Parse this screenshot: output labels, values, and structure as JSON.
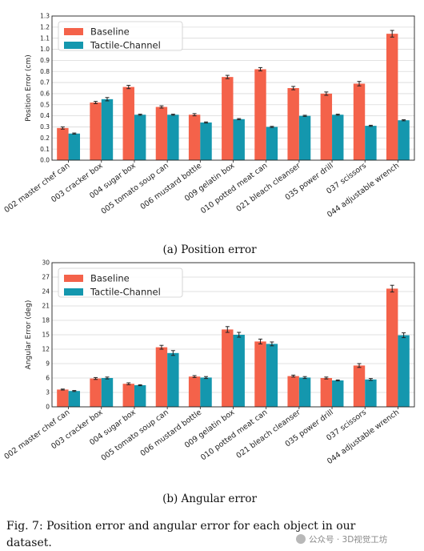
{
  "chart_data": [
    {
      "type": "bar",
      "caption": "(a) Position error",
      "ylabel": "Position Error (cm)",
      "ylim": [
        0,
        1.3
      ],
      "yticks": [
        "0.0",
        "0.1",
        "0.2",
        "0.3",
        "0.4",
        "0.5",
        "0.6",
        "0.7",
        "0.8",
        "0.9",
        "1.0",
        "1.1",
        "1.2",
        "1.3"
      ],
      "grid": true,
      "legend": "top-left",
      "categories": [
        "002 master chef can",
        "003 cracker box",
        "004 sugar box",
        "005 tomato soup can",
        "006 mustard bottle",
        "009 gelatin box",
        "010 potted meat can",
        "021 bleach cleanser",
        "035 power drill",
        "037 scissors",
        "044 adjustable wrench"
      ],
      "series": [
        {
          "name": "Baseline",
          "color": "#f4624a",
          "values": [
            0.29,
            0.52,
            0.66,
            0.48,
            0.41,
            0.75,
            0.82,
            0.65,
            0.6,
            0.69,
            1.14
          ],
          "errors": [
            0.01,
            0.01,
            0.015,
            0.01,
            0.01,
            0.015,
            0.015,
            0.015,
            0.015,
            0.02,
            0.03
          ]
        },
        {
          "name": "Tactile-Channel",
          "color": "#1497ae",
          "values": [
            0.24,
            0.55,
            0.41,
            0.41,
            0.34,
            0.37,
            0.3,
            0.4,
            0.41,
            0.31,
            0.36
          ],
          "errors": [
            0.005,
            0.015,
            0.005,
            0.005,
            0.005,
            0.005,
            0.005,
            0.005,
            0.005,
            0.005,
            0.005
          ]
        }
      ]
    },
    {
      "type": "bar",
      "caption": "(b) Angular error",
      "ylabel": "Angular Error (deg)",
      "ylim": [
        0,
        30
      ],
      "yticks": [
        "0",
        "3",
        "6",
        "9",
        "12",
        "15",
        "18",
        "21",
        "24",
        "27",
        "30"
      ],
      "grid": true,
      "legend": "top-left",
      "categories": [
        "002 master chef can",
        "003 cracker box",
        "004 sugar box",
        "005 tomato soup can",
        "006 mustard bottle",
        "009 gelatin box",
        "010 potted meat can",
        "021 bleach cleanser",
        "035 power drill",
        "037 scissors",
        "044 adjustable wrench"
      ],
      "series": [
        {
          "name": "Baseline",
          "color": "#f4624a",
          "values": [
            3.6,
            5.9,
            4.8,
            12.4,
            6.3,
            16.1,
            13.6,
            6.4,
            6.0,
            8.6,
            24.6
          ],
          "errors": [
            0.1,
            0.2,
            0.2,
            0.4,
            0.2,
            0.6,
            0.5,
            0.2,
            0.2,
            0.4,
            0.7
          ]
        },
        {
          "name": "Tactile-Channel",
          "color": "#1497ae",
          "values": [
            3.3,
            6.0,
            4.5,
            11.2,
            6.1,
            15.0,
            13.1,
            6.1,
            5.5,
            5.7,
            14.9
          ],
          "errors": [
            0.1,
            0.2,
            0.1,
            0.5,
            0.2,
            0.5,
            0.4,
            0.2,
            0.1,
            0.2,
            0.5
          ]
        }
      ]
    }
  ],
  "figure_caption": {
    "line1": "Fig. 7: Position error and angular error for each object in our",
    "line2": "dataset."
  },
  "watermark": "公众号 · 3D视觉工坊"
}
